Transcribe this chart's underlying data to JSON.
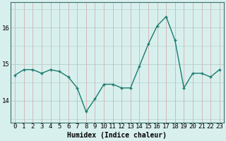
{
  "x": [
    0,
    1,
    2,
    3,
    4,
    5,
    6,
    7,
    8,
    9,
    10,
    11,
    12,
    13,
    14,
    15,
    16,
    17,
    18,
    19,
    20,
    21,
    22,
    23
  ],
  "y": [
    14.7,
    14.85,
    14.85,
    14.75,
    14.85,
    14.8,
    14.65,
    14.35,
    13.7,
    14.05,
    14.45,
    14.45,
    14.35,
    14.35,
    14.95,
    15.55,
    16.05,
    16.3,
    15.65,
    14.35,
    14.75,
    14.75,
    14.65,
    14.85
  ],
  "line_color": "#1a7a6e",
  "marker": "+",
  "marker_size": 3,
  "bg_color": "#d8f0ed",
  "grid_color_v": "#d4b8b8",
  "grid_color_h": "#b8d4d0",
  "xlabel": "Humidex (Indice chaleur)",
  "xlabel_fontsize": 7,
  "yticks": [
    14,
    15,
    16
  ],
  "xticks": [
    0,
    1,
    2,
    3,
    4,
    5,
    6,
    7,
    8,
    9,
    10,
    11,
    12,
    13,
    14,
    15,
    16,
    17,
    18,
    19,
    20,
    21,
    22,
    23
  ],
  "ylim": [
    13.4,
    16.7
  ],
  "xlim": [
    -0.5,
    23.5
  ],
  "line_width": 1.0,
  "tick_fontsize": 6.5
}
